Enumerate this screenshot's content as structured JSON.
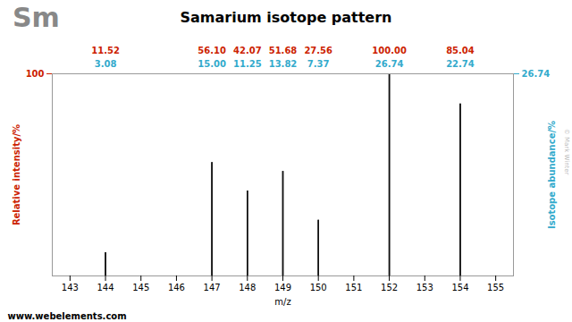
{
  "chart_data": {
    "type": "bar",
    "title": "Samarium isotope pattern",
    "annotations": [
      "Sm",
      "© Mark Winter",
      "www.webelements.com"
    ],
    "x": [
      144,
      147,
      148,
      149,
      150,
      152,
      154
    ],
    "xlabel": "m/z",
    "ylabel": "Relative intensity/%",
    "y2label": "Isotope abundance/%",
    "color": "#111111",
    "series": [
      {
        "name": "Relative intensity/%",
        "color": "#cc2200",
        "values": [
          11.52,
          56.1,
          42.07,
          51.68,
          27.56,
          100,
          85.04
        ],
        "value_labels": [
          "11.52",
          "56.10",
          "42.07",
          "51.68",
          "27.56",
          "100.00",
          "85.04"
        ]
      },
      {
        "name": "Isotope abundance/%",
        "axis": "y2",
        "color": "#33aacc",
        "values": [
          3.08,
          15.0,
          11.25,
          13.82,
          7.37,
          26.74,
          22.74
        ],
        "value_labels": [
          "3.08",
          "15.00",
          "11.25",
          "13.82",
          "7.37",
          "26.74",
          "22.74"
        ]
      }
    ],
    "data_labels": true,
    "xlim": [
      142.5,
      155.5
    ],
    "xticks": [
      143,
      144,
      145,
      146,
      147,
      148,
      149,
      150,
      151,
      152,
      153,
      154,
      155
    ],
    "ylim": [
      0,
      100
    ],
    "yticks": [
      100
    ],
    "y2lim": [
      0,
      26.74
    ],
    "y2ticks": [
      26.74
    ],
    "grid": false
  }
}
